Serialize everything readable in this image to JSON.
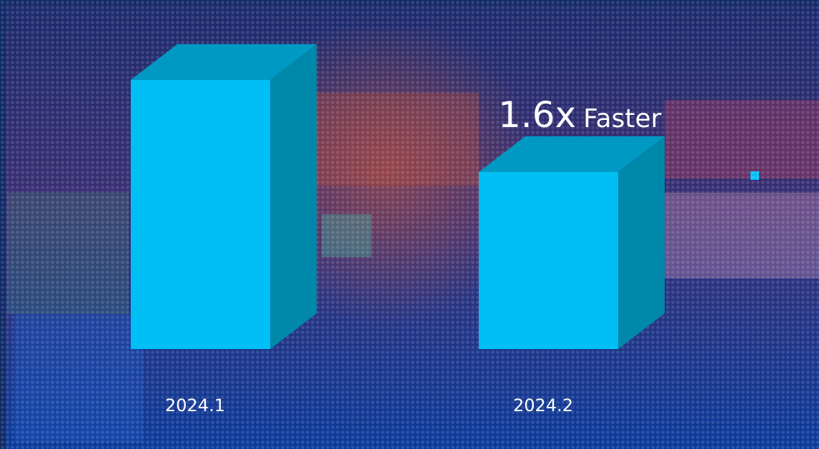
{
  "chart_data": {
    "type": "bar3d",
    "categories": [
      "2024.1",
      "2024.2"
    ],
    "values": [
      1.52,
      1
    ],
    "ylim": [
      0,
      1.6
    ],
    "annotation": [
      "1.6x",
      "Faster"
    ],
    "colors": {
      "front": "#00bff5",
      "side": "#0088aa",
      "top": "#0099c4"
    }
  }
}
